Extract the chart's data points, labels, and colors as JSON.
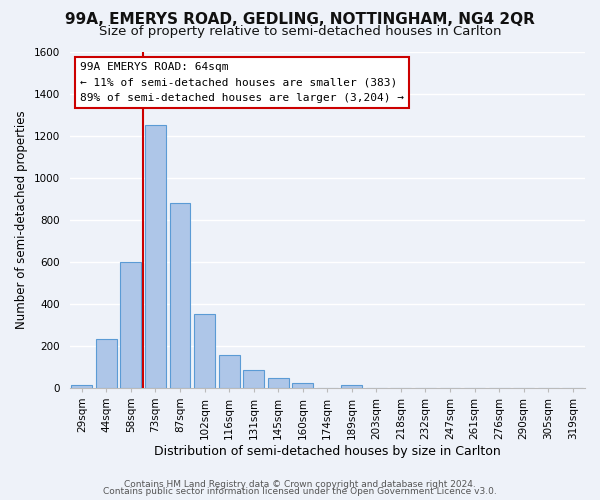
{
  "title": "99A, EMERYS ROAD, GEDLING, NOTTINGHAM, NG4 2QR",
  "subtitle": "Size of property relative to semi-detached houses in Carlton",
  "xlabel": "Distribution of semi-detached houses by size in Carlton",
  "ylabel": "Number of semi-detached properties",
  "footer_line1": "Contains HM Land Registry data © Crown copyright and database right 2024.",
  "footer_line2": "Contains public sector information licensed under the Open Government Licence v3.0.",
  "bar_labels": [
    "29sqm",
    "44sqm",
    "58sqm",
    "73sqm",
    "87sqm",
    "102sqm",
    "116sqm",
    "131sqm",
    "145sqm",
    "160sqm",
    "174sqm",
    "189sqm",
    "203sqm",
    "218sqm",
    "232sqm",
    "247sqm",
    "261sqm",
    "276sqm",
    "290sqm",
    "305sqm",
    "319sqm"
  ],
  "bar_values": [
    15,
    230,
    600,
    1250,
    880,
    350,
    155,
    85,
    48,
    25,
    0,
    15,
    0,
    0,
    0,
    0,
    0,
    0,
    0,
    0,
    0
  ],
  "bar_color": "#aec6e8",
  "bar_edge_color": "#5b9bd5",
  "vline_color": "#cc0000",
  "vline_bar_index": 2,
  "ylim": [
    0,
    1600
  ],
  "yticks": [
    0,
    200,
    400,
    600,
    800,
    1000,
    1200,
    1400,
    1600
  ],
  "annotation_title": "99A EMERYS ROAD: 64sqm",
  "annotation_line1": "← 11% of semi-detached houses are smaller (383)",
  "annotation_line2": "89% of semi-detached houses are larger (3,204) →",
  "annotation_box_color": "#ffffff",
  "annotation_box_edge": "#cc0000",
  "background_color": "#eef2f9",
  "grid_color": "#ffffff",
  "title_fontsize": 11,
  "subtitle_fontsize": 9.5,
  "xlabel_fontsize": 9,
  "ylabel_fontsize": 8.5,
  "tick_fontsize": 7.5,
  "footer_fontsize": 6.5
}
